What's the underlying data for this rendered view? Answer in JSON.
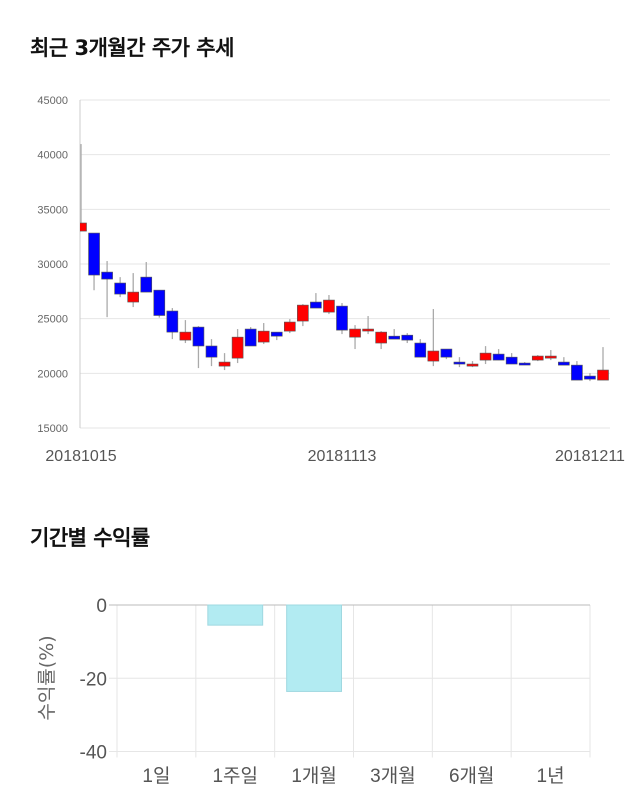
{
  "sections": {
    "price_title": "최근 3개월간 주가 추세",
    "return_title": "기간별 수익률"
  },
  "colors": {
    "up": "#ff0000",
    "down": "#0000ff",
    "wick": "#aaaaaa",
    "bar": "#b2ebf2",
    "grid": "#e6e6e6"
  },
  "chart_data": [
    {
      "type": "candlestick",
      "ylim": [
        15000,
        45000
      ],
      "yticks": [
        "45000",
        "40000",
        "35000",
        "30000",
        "25000",
        "20000",
        "15000"
      ],
      "xtick_labels": [
        {
          "index": 0,
          "label": "20181015"
        },
        {
          "index": 20,
          "label": "20181113"
        },
        {
          "index": 39,
          "label": "20181211"
        }
      ],
      "grid": true,
      "ohlc": [
        [
          33010,
          40970,
          33010,
          33750
        ],
        [
          32830,
          32830,
          27600,
          28990
        ],
        [
          29260,
          30270,
          25140,
          28620
        ],
        [
          28260,
          28800,
          26970,
          27250
        ],
        [
          26520,
          29170,
          26060,
          27430
        ],
        [
          28800,
          30180,
          27430,
          27430
        ],
        [
          27610,
          27610,
          25100,
          25290
        ],
        [
          25700,
          25970,
          23130,
          23770
        ],
        [
          23040,
          24870,
          22770,
          23770
        ],
        [
          24230,
          24320,
          20480,
          22500
        ],
        [
          22500,
          23130,
          20660,
          21480
        ],
        [
          20660,
          21850,
          20300,
          21030
        ],
        [
          21390,
          24050,
          20940,
          23310
        ],
        [
          24050,
          24230,
          22500,
          22500
        ],
        [
          22860,
          24600,
          22680,
          23860
        ],
        [
          23770,
          23770,
          23040,
          23400
        ],
        [
          23860,
          24960,
          23680,
          24690
        ],
        [
          24780,
          26330,
          24320,
          26240
        ],
        [
          26520,
          27340,
          25970,
          25970
        ],
        [
          25600,
          27160,
          25420,
          26700
        ],
        [
          26150,
          26430,
          23590,
          23950
        ],
        [
          23310,
          24410,
          22220,
          24050
        ],
        [
          23950,
          25240,
          23590,
          24050
        ],
        [
          22770,
          23860,
          22220,
          23770
        ],
        [
          23400,
          24050,
          23130,
          23130
        ],
        [
          23490,
          23680,
          22770,
          23040
        ],
        [
          22770,
          23130,
          21480,
          21480
        ],
        [
          21120,
          25880,
          20660,
          22040
        ],
        [
          22220,
          22220,
          21300,
          21480
        ],
        [
          21030,
          21480,
          20570,
          20850
        ],
        [
          20660,
          21120,
          20570,
          20850
        ],
        [
          21210,
          22490,
          20850,
          21850
        ],
        [
          21760,
          22220,
          21210,
          21210
        ],
        [
          21480,
          21850,
          20850,
          20850
        ],
        [
          20940,
          21030,
          20760,
          20850
        ],
        [
          21210,
          21670,
          21120,
          21580
        ],
        [
          21390,
          22130,
          21210,
          21580
        ],
        [
          21030,
          21480,
          20750,
          20750
        ],
        [
          20750,
          21120,
          19380,
          19380
        ],
        [
          19750,
          20020,
          19290,
          19470
        ],
        [
          19380,
          22400,
          19380,
          20300
        ],
        [
          20020,
          21300,
          19100,
          20570
        ]
      ]
    },
    {
      "type": "bar",
      "ylabel": "수익률(%)",
      "ylim": [
        -40,
        0
      ],
      "yticks": [
        "0",
        "-20",
        "-40"
      ],
      "categories": [
        "1일",
        "1주일",
        "1개월",
        "3개월",
        "6개월",
        "1년"
      ],
      "values": [
        0,
        -5.5,
        -23.6,
        0,
        0,
        0
      ],
      "grid": true
    }
  ]
}
